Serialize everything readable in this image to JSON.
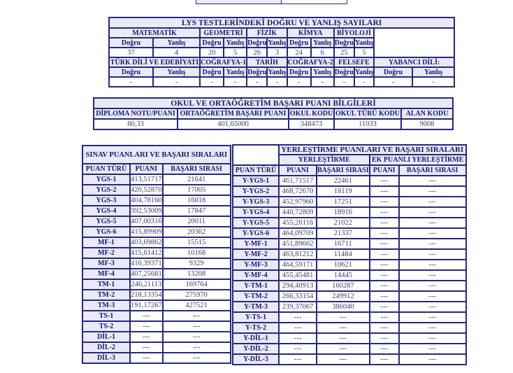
{
  "colors": {
    "border": "#28287c",
    "header_bg": "#e9e9f7",
    "header_text": "#18186e",
    "value_text": "#3d3d68",
    "page_bg": "#ffffff"
  },
  "labels": {
    "dogru": "Doğru",
    "yanlis": "Yanlış"
  },
  "lys": {
    "title": "LYS TESTLERİNDEKİ DOĞRU VE YANLIŞ SAYILARI",
    "subjects1": [
      "MATEMATİK",
      "GEOMETRİ",
      "FİZİK",
      "KİMYA",
      "BİYOLOJİ"
    ],
    "scores1": [
      "37",
      "4",
      "20",
      "5",
      "26",
      "3",
      "24",
      "6",
      "25",
      "5"
    ],
    "subjects2": [
      "TÜRK DİLİ VE EDEBİYATI",
      "COĞRAFYA-1",
      "TARİH",
      "COĞRAFYA-2",
      "FELSEFE",
      "YABANCI DİLİ:"
    ],
    "scores2": [
      "-",
      "-",
      "-",
      "-",
      "-",
      "-",
      "-",
      "-",
      "-",
      "-",
      "-",
      "-"
    ]
  },
  "okul": {
    "title": "OKUL VE ORTAÖĞRETİM BAŞARI PUANI BİLGİLERİ",
    "headers": [
      "DİPLOMA NOTU/PUANI",
      "ORTAÖĞRETİM BAŞARI PUANI",
      "OKUL KODU",
      "OKUL TÜRÜ KODU",
      "ALAN KODU"
    ],
    "values": [
      "80,33",
      "401,65000",
      "348473",
      "11033",
      "9008"
    ]
  },
  "sinav": {
    "title": "SINAV PUANLARI VE BAŞARI SIRALARI",
    "headers": [
      "PUAN TÜRÜ",
      "PUANI",
      "BAŞARI SIRASI"
    ],
    "rows": [
      [
        "YGS-1",
        "413,51717",
        "21641"
      ],
      [
        "YGS-2",
        "420,52870",
        "17005"
      ],
      [
        "YGS-3",
        "404,78160",
        "16018"
      ],
      [
        "YGS-4",
        "392,53009",
        "17847"
      ],
      [
        "YGS-5",
        "407,00316",
        "20011"
      ],
      [
        "YGS-6",
        "415,89909",
        "20362"
      ],
      [
        "MF-1",
        "403,69862",
        "15515"
      ],
      [
        "MF-2",
        "415,61412",
        "10168"
      ],
      [
        "MF-3",
        "416,39371",
        "9329"
      ],
      [
        "MF-4",
        "407,25681",
        "13208"
      ],
      [
        "TM-1",
        "246,21113",
        "169764"
      ],
      [
        "TM-2",
        "218,13354",
        "275970"
      ],
      [
        "TM-3",
        "191,17267",
        "427521"
      ],
      [
        "TS-1",
        "---",
        "---"
      ],
      [
        "TS-2",
        "---",
        "---"
      ],
      [
        "DİL-1",
        "---",
        "---"
      ],
      [
        "DİL-2",
        "---",
        "---"
      ],
      [
        "DİL-3",
        "---",
        "---"
      ]
    ]
  },
  "yer": {
    "title": "YERLEŞTİRME PUANLARI VE BAŞARI SIRALARI",
    "sub": [
      "YERLEŞTİRME",
      "EK PUANLI YERLEŞTİRME"
    ],
    "headers": [
      "PUAN TÜRÜ",
      "PUANI",
      "BAŞARI SIRASI",
      "PUANI",
      "BAŞARI SIRASI"
    ],
    "rows": [
      [
        "Y-YGS-1",
        "461,71517",
        "22461",
        "---",
        "---"
      ],
      [
        "Y-YGS-2",
        "468,72670",
        "18119",
        "---",
        "---"
      ],
      [
        "Y-YGS-3",
        "452,97960",
        "17251",
        "---",
        "---"
      ],
      [
        "Y-YGS-4",
        "440,72809",
        "18916",
        "---",
        "---"
      ],
      [
        "Y-YGS-5",
        "455,20116",
        "21022",
        "---",
        "---"
      ],
      [
        "Y-YGS-6",
        "464,09709",
        "21337",
        "---",
        "---"
      ],
      [
        "Y-MF-1",
        "451,89662",
        "16711",
        "---",
        "---"
      ],
      [
        "Y-MF-2",
        "463,81212",
        "11484",
        "---",
        "---"
      ],
      [
        "Y-MF-3",
        "464,59171",
        "10621",
        "---",
        "---"
      ],
      [
        "Y-MF-4",
        "455,45481",
        "14445",
        "---",
        "---"
      ],
      [
        "Y-TM-1",
        "294,40913",
        "160287",
        "---",
        "---"
      ],
      [
        "Y-TM-2",
        "266,33154",
        "249912",
        "---",
        "---"
      ],
      [
        "Y-TM-3",
        "239,37067",
        "386040",
        "---",
        "---"
      ],
      [
        "Y-TS-1",
        "---",
        "---",
        "---",
        "---"
      ],
      [
        "Y-TS-2",
        "---",
        "---",
        "---",
        "---"
      ],
      [
        "Y-DİL-1",
        "---",
        "---",
        "---",
        "---"
      ],
      [
        "Y-DİL-2",
        "---",
        "---",
        "---",
        "---"
      ],
      [
        "Y-DİL-3",
        "---",
        "---",
        "---",
        "---"
      ]
    ]
  }
}
